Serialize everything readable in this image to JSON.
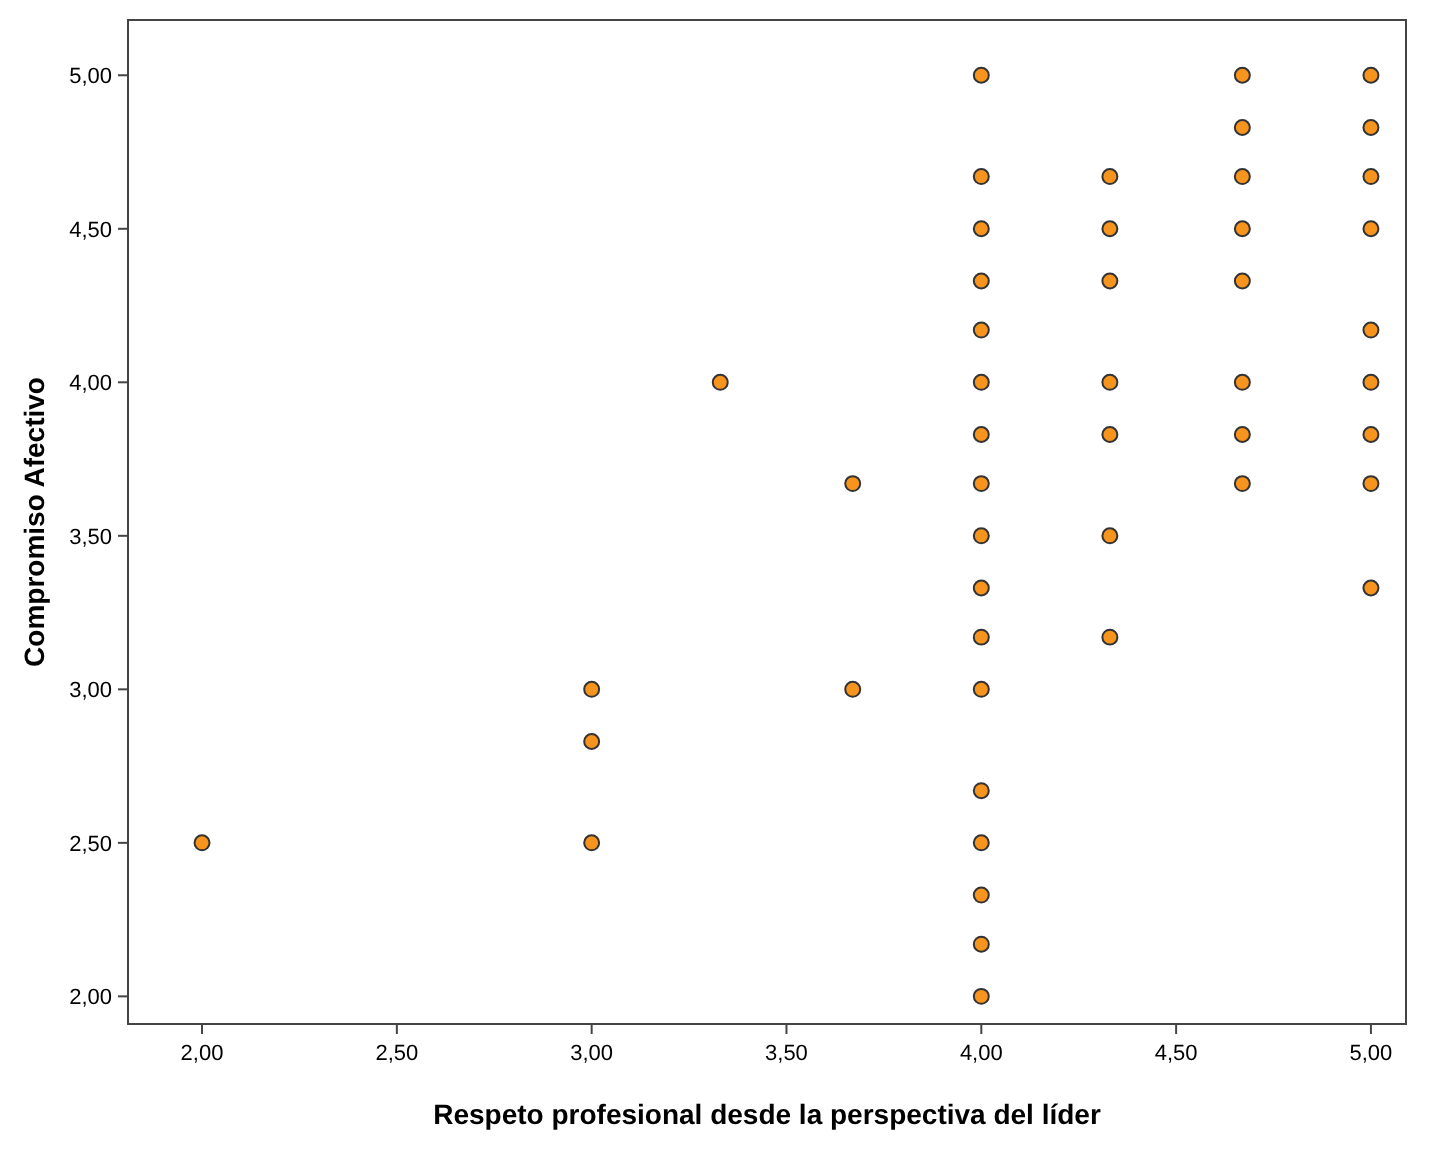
{
  "chart_data": {
    "type": "scatter",
    "xlabel": "Respeto profesional desde la perspectiva del líder",
    "ylabel": "Compromiso Afectivo",
    "xlim": [
      1.81,
      5.09
    ],
    "ylim": [
      1.91,
      5.18
    ],
    "xticks": [
      {
        "value": 2,
        "label": "2,00"
      },
      {
        "value": 2.5,
        "label": "2,50"
      },
      {
        "value": 3,
        "label": "3,00"
      },
      {
        "value": 3.5,
        "label": "3,50"
      },
      {
        "value": 4,
        "label": "4,00"
      },
      {
        "value": 4.5,
        "label": "4,50"
      },
      {
        "value": 5,
        "label": "5,00"
      }
    ],
    "yticks": [
      {
        "value": 2,
        "label": "2,00"
      },
      {
        "value": 2.5,
        "label": "2,50"
      },
      {
        "value": 3,
        "label": "3,00"
      },
      {
        "value": 3.5,
        "label": "3,50"
      },
      {
        "value": 4,
        "label": "4,00"
      },
      {
        "value": 4.5,
        "label": "4,50"
      },
      {
        "value": 5,
        "label": "5,00"
      }
    ],
    "grid": false,
    "marker": "circle",
    "series": [
      {
        "color": "#f7941d",
        "x": [
          2,
          3,
          3,
          3,
          3.33,
          3.67,
          3.67,
          4,
          4,
          4,
          4,
          4,
          4,
          4,
          4,
          4,
          4,
          4,
          4,
          4,
          4,
          4,
          4,
          4,
          4.33,
          4.33,
          4.33,
          4.33,
          4.33,
          4.33,
          4.33,
          4.67,
          4.67,
          4.67,
          4.67,
          4.67,
          4.67,
          4.67,
          4.67,
          5,
          5,
          5,
          5,
          5,
          5,
          5,
          5,
          5
        ],
        "values": [
          2.5,
          3,
          2.83,
          2.5,
          4,
          3.67,
          3,
          5,
          4.67,
          4.5,
          4.33,
          4.17,
          4,
          3.83,
          3.67,
          3.5,
          3.33,
          3.17,
          3,
          2.67,
          2.5,
          2.33,
          2.17,
          2,
          4.67,
          4.5,
          4.33,
          4,
          3.83,
          3.5,
          3.17,
          5,
          4.83,
          4.67,
          4.5,
          4.33,
          4,
          3.83,
          3.67,
          5,
          4.83,
          4.67,
          4.5,
          4.17,
          4,
          3.83,
          3.67,
          3.33
        ]
      }
    ]
  }
}
